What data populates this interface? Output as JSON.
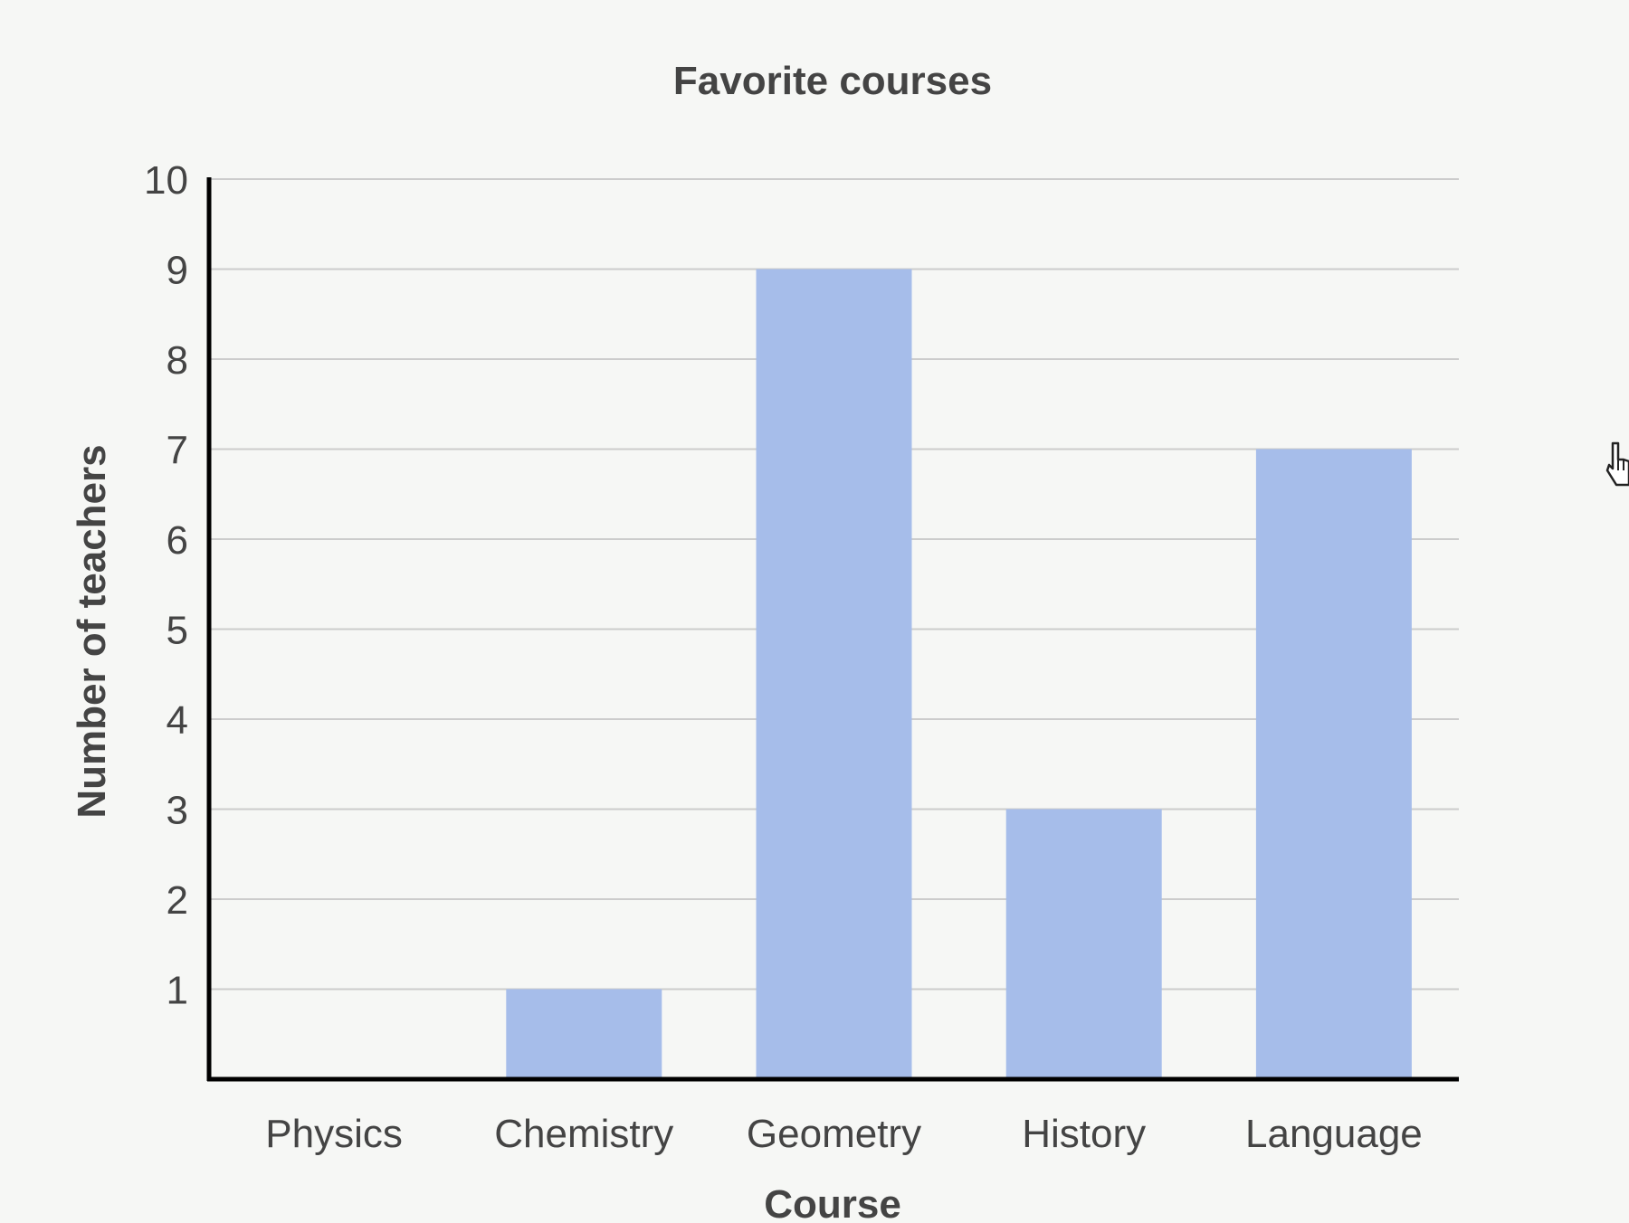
{
  "chart_data": {
    "type": "bar",
    "title": "Favorite courses",
    "xlabel": "Course",
    "ylabel": "Number of teachers",
    "categories": [
      "Physics",
      "Chemistry",
      "Geometry",
      "History",
      "Language"
    ],
    "values": [
      0,
      1,
      9,
      3,
      7
    ],
    "ylim": [
      0,
      10
    ],
    "yticks": [
      "1",
      "2",
      "3",
      "4",
      "5",
      "6",
      "7",
      "8",
      "9",
      "10"
    ],
    "grid": true,
    "legend": "none",
    "colors": {
      "bar": "#a6bdea",
      "grid": "#cccccc",
      "axis": "#000000",
      "text": "#444444",
      "background": "#f6f7f5"
    }
  },
  "cursor": {
    "icon": "hand-pointer-icon"
  }
}
